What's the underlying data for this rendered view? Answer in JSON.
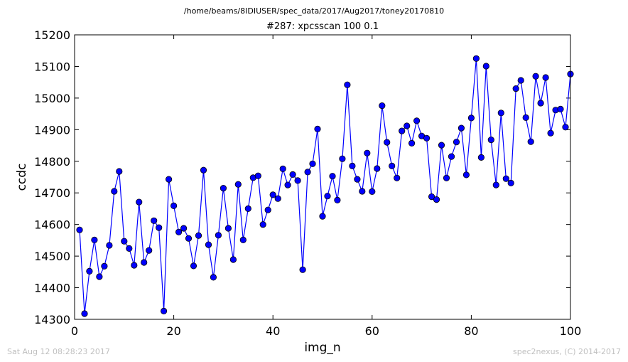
{
  "header": {
    "path": "/home/beams/8IDIUSER/spec_data/2017/Aug2017/toney20170810"
  },
  "footer": {
    "timestamp": "Sat Aug 12 08:28:23 2017",
    "credit": "spec2nexus, (C) 2014-2017"
  },
  "chart_data": {
    "type": "line",
    "title": "#287: xpcsscan 100 0.1",
    "xlabel": "img_n",
    "ylabel": "ccdc",
    "xlim": [
      0,
      100
    ],
    "ylim": [
      14300,
      15200
    ],
    "xticks": [
      0,
      20,
      40,
      60,
      80,
      100
    ],
    "yticks": [
      14300,
      14400,
      14500,
      14600,
      14700,
      14800,
      14900,
      15000,
      15100,
      15200
    ],
    "grid": false,
    "legend": "none",
    "color": "#0000ff",
    "marker": "circle",
    "series": [
      {
        "x": [
          1,
          2,
          3,
          4,
          5,
          6,
          7,
          8,
          9,
          10,
          11,
          12,
          13,
          14,
          15,
          16,
          17,
          18,
          19,
          20,
          21,
          22,
          23,
          24,
          25,
          26,
          27,
          28,
          29,
          30,
          31,
          32,
          33,
          34,
          35,
          36,
          37,
          38,
          39,
          40,
          41,
          42,
          43,
          44,
          45,
          46,
          47,
          48,
          49,
          50,
          51,
          52,
          53,
          54,
          55,
          56,
          57,
          58,
          59,
          60,
          61,
          62,
          63,
          64,
          65,
          66,
          67,
          68,
          69,
          70,
          71,
          72,
          73,
          74,
          75,
          76,
          77,
          78,
          79,
          80,
          81,
          82,
          83,
          84,
          85,
          86,
          87,
          88,
          89,
          90,
          91,
          92,
          93,
          94,
          95,
          96,
          97,
          98,
          99,
          100
        ],
        "values": [
          14583,
          14318,
          14452,
          14551,
          14435,
          14468,
          14534,
          14705,
          14768,
          14547,
          14524,
          14471,
          14671,
          14480,
          14518,
          14612,
          14590,
          14326,
          14743,
          14659,
          14576,
          14588,
          14556,
          14469,
          14565,
          14772,
          14536,
          14433,
          14566,
          14715,
          14588,
          14489,
          14727,
          14551,
          14650,
          14748,
          14754,
          14600,
          14646,
          14694,
          14682,
          14776,
          14725,
          14758,
          14739,
          14457,
          14766,
          14792,
          14902,
          14626,
          14690,
          14753,
          14677,
          14808,
          15042,
          14785,
          14743,
          14705,
          14826,
          14704,
          14777,
          14976,
          14860,
          14785,
          14747,
          14896,
          14912,
          14857,
          14928,
          14880,
          14873,
          14688,
          14679,
          14851,
          14747,
          14815,
          14861,
          14905,
          14757,
          14937,
          15125,
          14812,
          15101,
          14868,
          14725,
          14953,
          14745,
          14731,
          15030,
          15056,
          14938,
          14862,
          15069,
          14984,
          15065,
          14889,
          14962,
          14965,
          14908,
          15076
        ]
      }
    ]
  }
}
